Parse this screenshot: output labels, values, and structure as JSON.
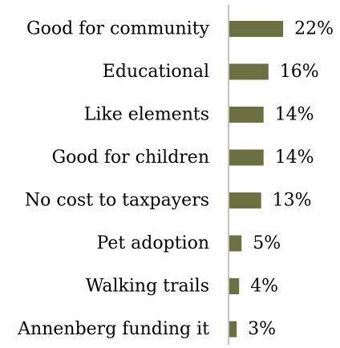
{
  "chart_data": {
    "type": "bar",
    "orientation": "horizontal",
    "categories": [
      "Good for community",
      "Educational",
      "Like elements ",
      "Good for children",
      "No cost to taxpayers",
      "Pet adoption",
      "Walking trails",
      "Annenberg funding it"
    ],
    "values": [
      22,
      16,
      14,
      14,
      13,
      5,
      4,
      3
    ],
    "value_labels": [
      "22%",
      "16%",
      "14%",
      "14%",
      "13%",
      "5%",
      "4%",
      "3%"
    ],
    "unit": "%",
    "bar_color": "#6b7040",
    "axis_color": "#888888",
    "grid": false,
    "legend": "none"
  }
}
